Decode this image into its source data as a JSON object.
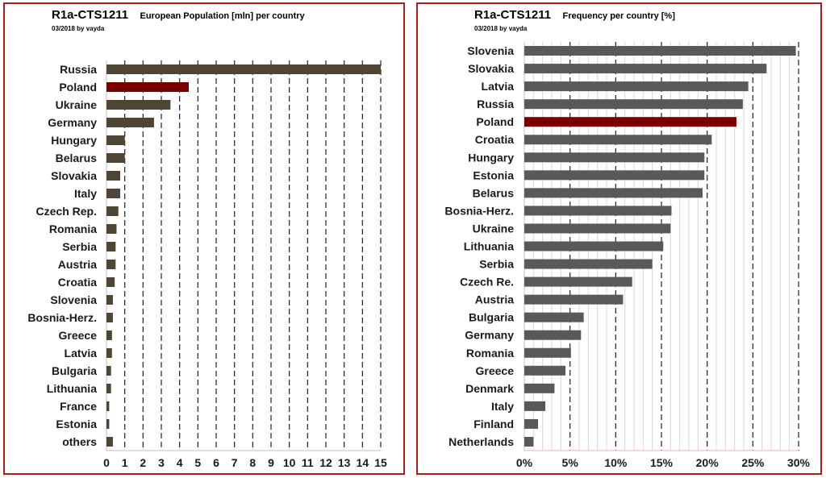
{
  "chart_data": [
    {
      "type": "bar",
      "orientation": "horizontal",
      "title": "R1a-CTS1211",
      "subtitle": "European Population [mln] per country",
      "byline": "03/2018 by vayda",
      "categories": [
        "Russia",
        "Poland",
        "Ukraine",
        "Germany",
        "Hungary",
        "Belarus",
        "Slovakia",
        "Italy",
        "Czech Rep.",
        "Romania",
        "Serbia",
        "Austria",
        "Croatia",
        "Slovenia",
        "Bosnia-Herz.",
        "Greece",
        "Latvia",
        "Bulgaria",
        "Lithuania",
        "France",
        "Estonia",
        "others"
      ],
      "values": [
        15,
        4.5,
        3.5,
        2.6,
        1.0,
        1.0,
        0.75,
        0.75,
        0.65,
        0.55,
        0.5,
        0.5,
        0.45,
        0.35,
        0.35,
        0.3,
        0.3,
        0.25,
        0.25,
        0.15,
        0.15,
        0.35
      ],
      "highlight": "Poland",
      "xlim": [
        0,
        15
      ],
      "xticks": [
        "0",
        "1",
        "2",
        "3",
        "4",
        "5",
        "6",
        "7",
        "8",
        "9",
        "10",
        "11",
        "12",
        "13",
        "14",
        "15"
      ],
      "xlabel": "",
      "ylabel": "",
      "grid": "vertical dashed",
      "colors": {
        "bar": "#4f4535",
        "highlight": "#7a0000",
        "grid": "#333333"
      }
    },
    {
      "type": "bar",
      "orientation": "horizontal",
      "title": "R1a-CTS1211",
      "subtitle": "Frequency per country [%]",
      "byline": "03/2018 by vayda",
      "categories": [
        "Slovenia",
        "Slovakia",
        "Latvia",
        "Russia",
        "Poland",
        "Croatia",
        "Hungary",
        "Estonia",
        "Belarus",
        "Bosnia-Herz.",
        "Ukraine",
        "Lithuania",
        "Serbia",
        "Czech Re.",
        "Austria",
        "Bulgaria",
        "Germany",
        "Romania",
        "Greece",
        "Denmark",
        "Italy",
        "Finland",
        "Netherlands"
      ],
      "values": [
        29.7,
        26.5,
        24.5,
        23.9,
        23.2,
        20.5,
        19.7,
        19.7,
        19.5,
        16.1,
        16.0,
        15.2,
        14.0,
        11.8,
        10.8,
        6.5,
        6.2,
        5.1,
        4.5,
        3.3,
        2.3,
        1.5,
        1.0
      ],
      "highlight": "Poland",
      "xlim": [
        0,
        30
      ],
      "xticks": [
        "0%",
        "5%",
        "10%",
        "15%",
        "20%",
        "25%",
        "30%"
      ],
      "xlabel": "",
      "ylabel": "",
      "grid": "vertical dashed major, light minor",
      "colors": {
        "bar": "#595959",
        "highlight": "#7a0000",
        "grid": "#333333",
        "minor_grid": "#d9d9d9",
        "axis": "#e6b9a8"
      }
    }
  ]
}
